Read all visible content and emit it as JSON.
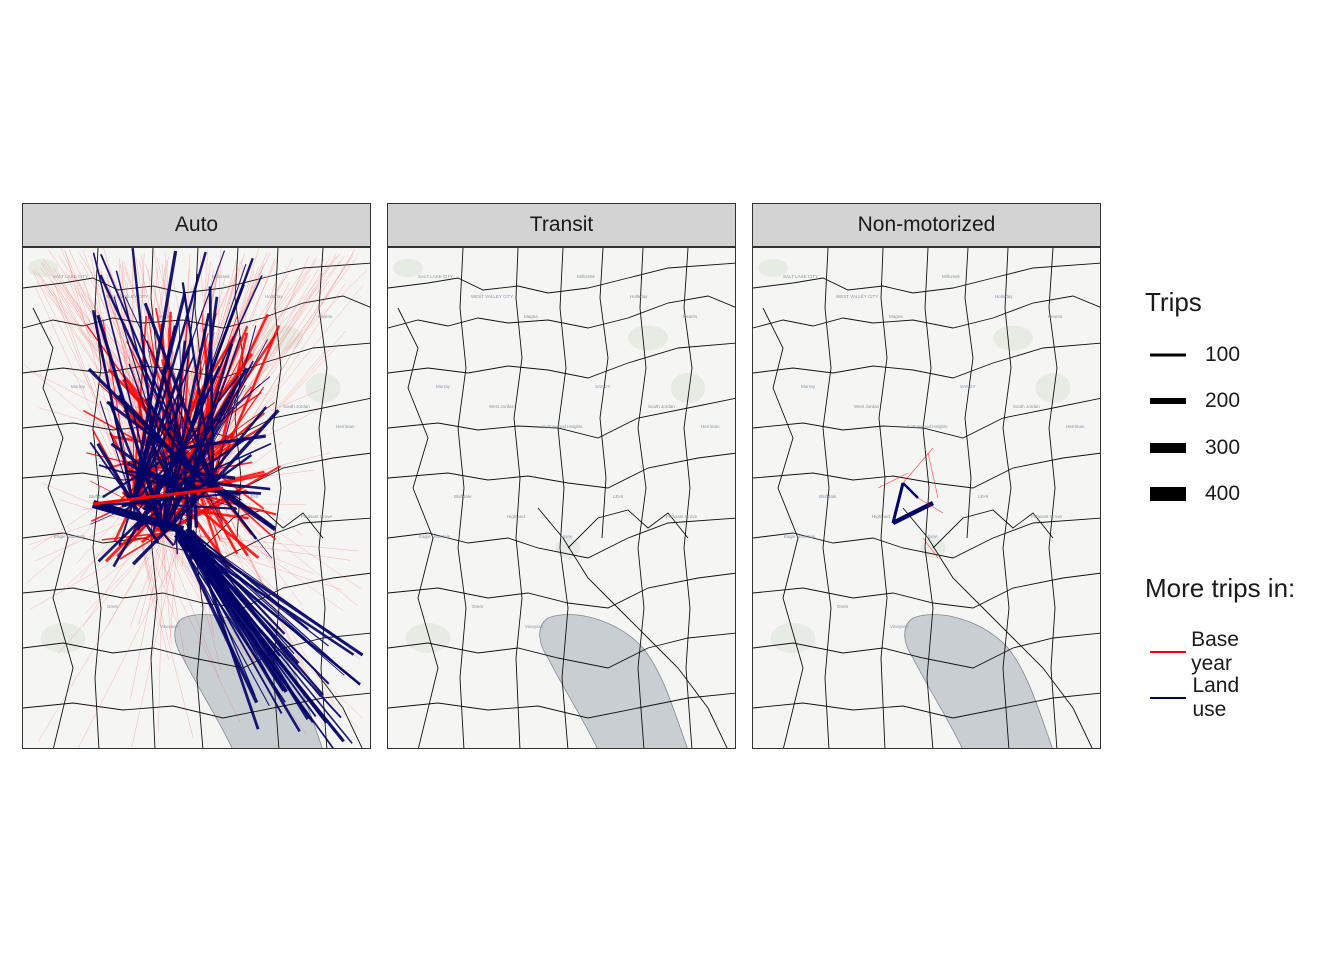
{
  "facets": [
    {
      "label": "Auto"
    },
    {
      "label": "Transit"
    },
    {
      "label": "Non-motorized"
    }
  ],
  "map": {
    "place_labels": [
      "SALT LAKE CITY",
      "WEST VALLEY CITY",
      "Magna",
      "Millcreek",
      "Holladay",
      "Kearns",
      "Murray",
      "West Jordan",
      "Cottonwood Heights",
      "SANDY",
      "South Jordan",
      "Herriman",
      "Bluffdale",
      "Highland",
      "Alpine",
      "LEHI",
      "Pleasant Grove",
      "Eagle Mountain",
      "Orem",
      "Vineyard"
    ],
    "lake_color": "#c9ced3",
    "land_color": "#f5f5f3"
  },
  "legend": {
    "trips_title": "Trips",
    "trips_items": [
      {
        "label": "100",
        "value": 100
      },
      {
        "label": "200",
        "value": 200
      },
      {
        "label": "300",
        "value": 300
      },
      {
        "label": "400",
        "value": 400
      }
    ],
    "color_title": "More trips in:",
    "color_items": [
      {
        "label": "Base year",
        "color": "#ff0000"
      },
      {
        "label": "Land use",
        "color": "#000066"
      }
    ]
  },
  "chart_data": {
    "type": "map",
    "facets": [
      "Auto",
      "Transit",
      "Non-motorized"
    ],
    "size_legend": {
      "title": "Trips",
      "breaks": [
        100,
        200,
        300,
        400
      ]
    },
    "color_legend": {
      "title": "More trips in:",
      "categories": [
        "Base year",
        "Land use"
      ],
      "colors": [
        "#ff0000",
        "#000066"
      ]
    }
  }
}
